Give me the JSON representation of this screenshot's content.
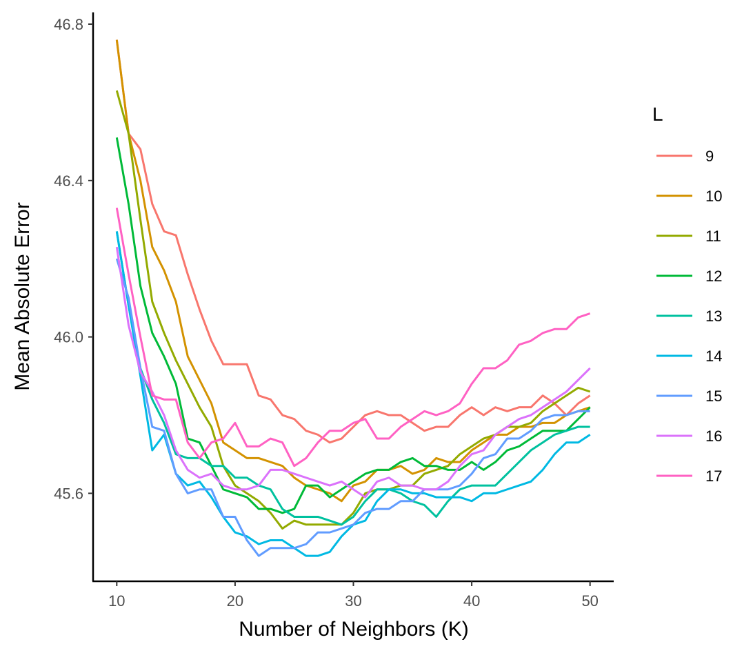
{
  "chart_data": {
    "type": "line",
    "title": "",
    "xlabel": "Number of Neighbors (K)",
    "ylabel": "Mean Absolute Error",
    "xlim": [
      8,
      52
    ],
    "ylim": [
      45.375,
      46.83
    ],
    "xticks": [
      10,
      20,
      30,
      40,
      50
    ],
    "xtick_labels": [
      "10",
      "20",
      "30",
      "40",
      "50"
    ],
    "yticks": [
      45.6,
      46.0,
      46.4,
      46.8
    ],
    "ytick_labels": [
      "45.6",
      "46.0",
      "46.4",
      "46.8"
    ],
    "grid": false,
    "legend_title": "L",
    "legend_position": "right",
    "x": [
      10,
      11,
      12,
      13,
      14,
      15,
      16,
      17,
      18,
      19,
      20,
      21,
      22,
      23,
      24,
      25,
      26,
      27,
      28,
      29,
      30,
      31,
      32,
      33,
      34,
      35,
      36,
      37,
      38,
      39,
      40,
      41,
      42,
      43,
      44,
      45,
      46,
      47,
      48,
      49,
      50
    ],
    "series": [
      {
        "name": "9",
        "color": "#F8766D",
        "values": [
          46.76,
          46.52,
          46.48,
          46.34,
          46.27,
          46.26,
          46.16,
          46.07,
          45.99,
          45.93,
          45.93,
          45.93,
          45.85,
          45.84,
          45.8,
          45.79,
          45.76,
          45.75,
          45.73,
          45.74,
          45.77,
          45.8,
          45.81,
          45.8,
          45.8,
          45.78,
          45.76,
          45.77,
          45.77,
          45.8,
          45.82,
          45.8,
          45.82,
          45.81,
          45.82,
          45.82,
          45.85,
          45.83,
          45.8,
          45.83,
          45.85
        ]
      },
      {
        "name": "10",
        "color": "#D39200",
        "values": [
          46.76,
          46.52,
          46.4,
          46.23,
          46.17,
          46.09,
          45.95,
          45.89,
          45.83,
          45.73,
          45.71,
          45.69,
          45.69,
          45.68,
          45.67,
          45.64,
          45.62,
          45.61,
          45.6,
          45.58,
          45.62,
          45.63,
          45.66,
          45.66,
          45.67,
          45.65,
          45.66,
          45.69,
          45.68,
          45.68,
          45.71,
          45.73,
          45.75,
          45.75,
          45.77,
          45.77,
          45.78,
          45.78,
          45.8,
          45.81,
          45.82
        ]
      },
      {
        "name": "11",
        "color": "#93AA00",
        "values": [
          46.63,
          46.52,
          46.3,
          46.09,
          46.01,
          45.94,
          45.88,
          45.82,
          45.77,
          45.67,
          45.62,
          45.6,
          45.58,
          45.55,
          45.51,
          45.53,
          45.52,
          45.52,
          45.52,
          45.52,
          45.55,
          45.6,
          45.61,
          45.61,
          45.62,
          45.62,
          45.65,
          45.66,
          45.67,
          45.7,
          45.72,
          45.74,
          45.75,
          45.77,
          45.77,
          45.78,
          45.81,
          45.83,
          45.85,
          45.87,
          45.86
        ]
      },
      {
        "name": "12",
        "color": "#00BA38",
        "values": [
          46.51,
          46.34,
          46.13,
          46.01,
          45.95,
          45.88,
          45.74,
          45.73,
          45.67,
          45.61,
          45.6,
          45.59,
          45.56,
          45.56,
          45.55,
          45.56,
          45.62,
          45.62,
          45.59,
          45.61,
          45.63,
          45.65,
          45.66,
          45.66,
          45.68,
          45.69,
          45.67,
          45.67,
          45.66,
          45.66,
          45.68,
          45.66,
          45.68,
          45.71,
          45.72,
          45.74,
          45.76,
          45.76,
          45.76,
          45.79,
          45.82
        ]
      },
      {
        "name": "13",
        "color": "#00C19F",
        "values": [
          46.27,
          46.08,
          45.92,
          45.84,
          45.78,
          45.7,
          45.69,
          45.69,
          45.67,
          45.67,
          45.64,
          45.64,
          45.62,
          45.61,
          45.56,
          45.54,
          45.54,
          45.54,
          45.53,
          45.52,
          45.54,
          45.58,
          45.61,
          45.61,
          45.6,
          45.58,
          45.57,
          45.54,
          45.58,
          45.61,
          45.62,
          45.62,
          45.62,
          45.65,
          45.68,
          45.71,
          45.73,
          45.75,
          45.76,
          45.77,
          45.77
        ]
      },
      {
        "name": "14",
        "color": "#00B9E3",
        "values": [
          46.27,
          46.08,
          45.9,
          45.71,
          45.75,
          45.65,
          45.62,
          45.63,
          45.59,
          45.54,
          45.5,
          45.49,
          45.47,
          45.48,
          45.48,
          45.46,
          45.44,
          45.44,
          45.45,
          45.49,
          45.52,
          45.53,
          45.58,
          45.61,
          45.61,
          45.6,
          45.6,
          45.59,
          45.59,
          45.59,
          45.58,
          45.6,
          45.6,
          45.61,
          45.62,
          45.63,
          45.66,
          45.7,
          45.73,
          45.73,
          45.75
        ]
      },
      {
        "name": "15",
        "color": "#619CFF",
        "values": [
          46.2,
          46.1,
          45.92,
          45.77,
          45.76,
          45.65,
          45.6,
          45.61,
          45.61,
          45.54,
          45.54,
          45.48,
          45.44,
          45.46,
          45.46,
          45.46,
          45.47,
          45.5,
          45.5,
          45.51,
          45.52,
          45.55,
          45.56,
          45.56,
          45.58,
          45.58,
          45.61,
          45.61,
          45.61,
          45.62,
          45.65,
          45.69,
          45.7,
          45.74,
          45.74,
          45.76,
          45.79,
          45.8,
          45.8,
          45.81,
          45.81
        ]
      },
      {
        "name": "16",
        "color": "#DB72FB",
        "values": [
          46.23,
          46.03,
          45.91,
          45.86,
          45.8,
          45.71,
          45.66,
          45.64,
          45.65,
          45.62,
          45.61,
          45.61,
          45.62,
          45.66,
          45.66,
          45.65,
          45.64,
          45.63,
          45.62,
          45.63,
          45.61,
          45.59,
          45.63,
          45.64,
          45.62,
          45.62,
          45.61,
          45.61,
          45.63,
          45.67,
          45.7,
          45.71,
          45.75,
          45.77,
          45.79,
          45.8,
          45.82,
          45.84,
          45.86,
          45.89,
          45.92
        ]
      },
      {
        "name": "17",
        "color": "#FF61C3",
        "values": [
          46.33,
          46.16,
          46.0,
          45.85,
          45.84,
          45.84,
          45.73,
          45.69,
          45.73,
          45.74,
          45.78,
          45.72,
          45.72,
          45.74,
          45.73,
          45.67,
          45.69,
          45.73,
          45.76,
          45.76,
          45.78,
          45.79,
          45.74,
          45.74,
          45.77,
          45.79,
          45.81,
          45.8,
          45.81,
          45.83,
          45.88,
          45.92,
          45.92,
          45.94,
          45.98,
          45.99,
          46.01,
          46.02,
          46.02,
          46.05,
          46.06
        ]
      }
    ]
  }
}
